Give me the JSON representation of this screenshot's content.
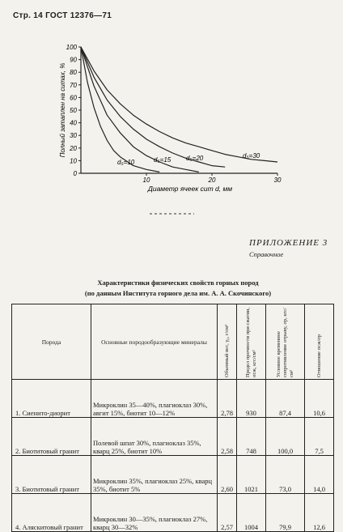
{
  "header": "Стр. 14 ГОСТ 12376—71",
  "chart_data": {
    "type": "line",
    "ylabel": "Полный затаплен на ситах, %",
    "xlabel": "Диаметр ячеек сит d, мм",
    "xlim": [
      0,
      30
    ],
    "ylim": [
      0,
      100
    ],
    "x_ticks": [
      "10",
      "20",
      "30"
    ],
    "y_ticks": [
      "0",
      "10",
      "20",
      "30",
      "40",
      "50",
      "60",
      "70",
      "80",
      "90",
      "100"
    ],
    "series": [
      {
        "name": "d₅=10",
        "x": [
          0,
          1,
          2,
          3,
          4,
          5,
          6,
          8,
          10,
          12
        ],
        "y": [
          100,
          72,
          52,
          37,
          26,
          18,
          13,
          6,
          3,
          1
        ]
      },
      {
        "name": "d₅=15",
        "x": [
          0,
          2,
          4,
          6,
          8,
          10,
          12,
          14,
          16,
          18
        ],
        "y": [
          100,
          69,
          46,
          32,
          21,
          14,
          9,
          5,
          3,
          1
        ]
      },
      {
        "name": "d₅=20",
        "x": [
          0,
          2,
          4,
          6,
          8,
          10,
          12,
          14,
          16,
          18,
          20,
          22
        ],
        "y": [
          100,
          76,
          58,
          45,
          35,
          27,
          21,
          16,
          12,
          9,
          6,
          5
        ]
      },
      {
        "name": "d₅=30",
        "x": [
          0,
          2,
          4,
          6,
          8,
          10,
          12,
          14,
          16,
          18,
          20,
          22,
          24,
          26,
          28,
          30
        ],
        "y": [
          100,
          81,
          66,
          55,
          46,
          39,
          33,
          28,
          24,
          21,
          18,
          15,
          13,
          11,
          10,
          9
        ]
      }
    ]
  },
  "appendix": {
    "title": "ПРИЛОЖЕНИЕ 3",
    "subtitle": "Справочное"
  },
  "table_title": {
    "line1": "Характеристики физических свойств горных пород",
    "line2": "(по данным Института горного дела им. А. А. Скочинского)"
  },
  "table": {
    "headers": [
      "Порода",
      "Основные породообразующие минералы",
      "Объемный вес, γ₀, г/см³",
      "Предел прочности при сжатии, σсж, кгс/см²",
      "Условное временное сопротивление отрыву, σр, кгс/см²",
      "Отношение σсж/σр"
    ],
    "rows": [
      {
        "name": "1. Сиенито-диорит",
        "minerals": "Микроклин 35—40%, плагиоклаз 30%, авгит 15%, биотит 10—12%",
        "density": "2,78",
        "compress": "930",
        "tension": "87,4",
        "ratio": "10,6"
      },
      {
        "name": "2. Биотитовый гранит",
        "minerals": "Полевой шпат 30%, плагиоклаз 35%, кварц 25%, биотит 10%",
        "density": "2,58",
        "compress": "748",
        "tension": "100,0",
        "ratio": "7,5"
      },
      {
        "name": "3. Биотитовый гранит",
        "minerals": "Микроклин 35%, плагиоклаз 25%, кварц 35%, биотит 5%",
        "density": "2,60",
        "compress": "1021",
        "tension": "73,0",
        "ratio": "14,0"
      },
      {
        "name": "4. Аляскитовый гранит",
        "minerals": "Микроклин 30—35%, плагиоклаз 27%, кварц 30—32%",
        "density": "2,57",
        "compress": "1004",
        "tension": "79,9",
        "ratio": "12,6"
      }
    ]
  }
}
